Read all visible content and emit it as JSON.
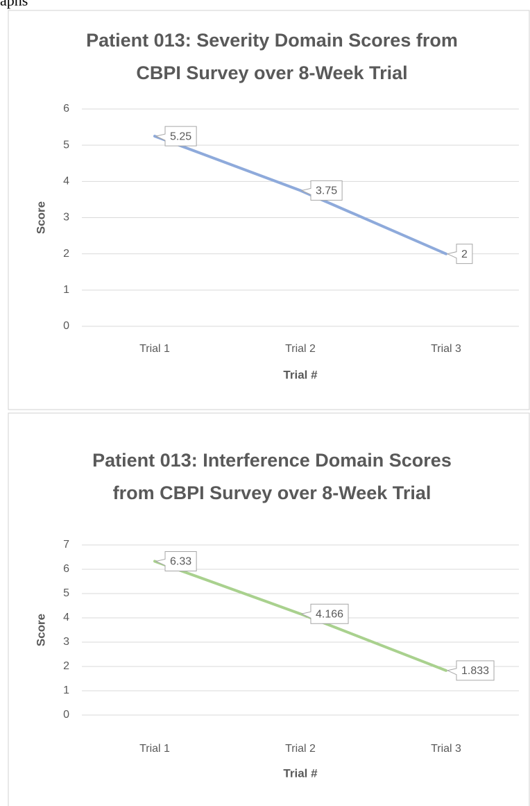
{
  "heading": "aphs",
  "chart_data": [
    {
      "type": "line",
      "title": "Patient 013: Severity Domain Scores from CBPI Survey over 8-Week Trial",
      "x_label": "Trial #",
      "y_label": "Score",
      "categories": [
        "Trial 1",
        "Trial 2",
        "Trial 3"
      ],
      "series": [
        {
          "name": "Severity",
          "color": "#8eaadb",
          "values": [
            5.25,
            3.75,
            2
          ]
        }
      ],
      "ylim": [
        0,
        6
      ],
      "yticks": [
        0,
        1,
        2,
        3,
        4,
        5,
        6
      ],
      "grid": true
    },
    {
      "type": "line",
      "title": "Patient 013: Interference Domain Scores from CBPI Survey over 8-Week Trial",
      "x_label": "Trial #",
      "y_label": "Score",
      "categories": [
        "Trial 1",
        "Trial 2",
        "Trial 3"
      ],
      "series": [
        {
          "name": "Interference",
          "color": "#a9d18e",
          "values": [
            6.33,
            4.166,
            1.833
          ]
        }
      ],
      "ylim": [
        0,
        7
      ],
      "yticks": [
        0,
        1,
        2,
        3,
        4,
        5,
        6,
        7
      ],
      "grid": true
    }
  ]
}
